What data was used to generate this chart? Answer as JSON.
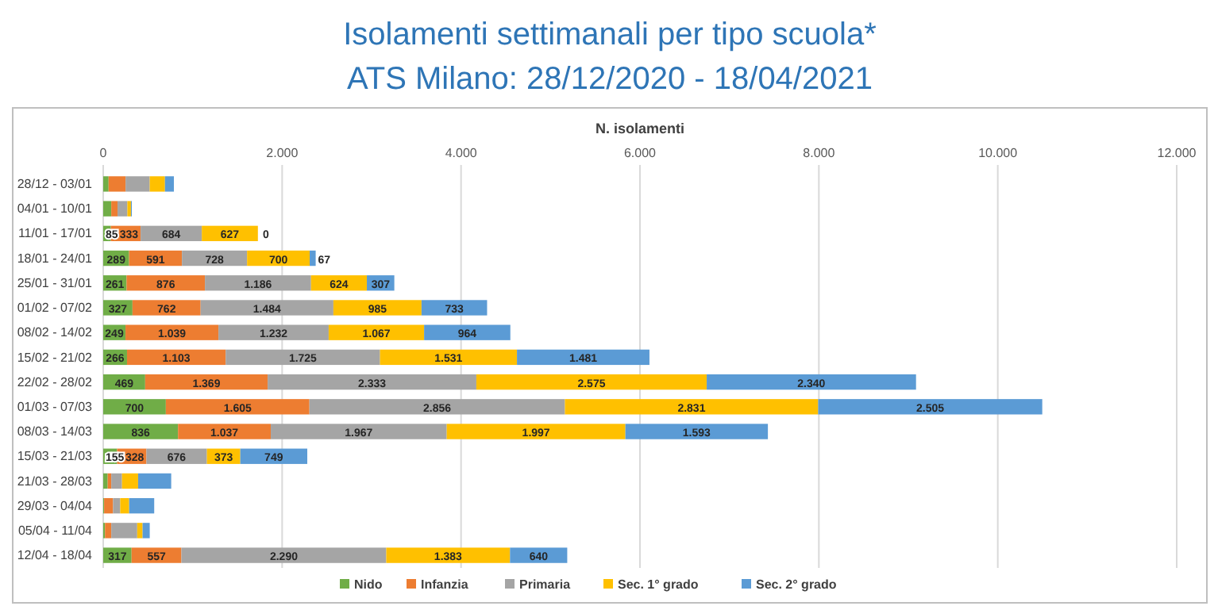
{
  "chart_data": {
    "type": "bar",
    "orientation": "horizontal",
    "stacked": true,
    "title": "Isolamenti settimanali per tipo scuola*",
    "subtitle": "ATS Milano: 28/12/2020 - 18/04/2021",
    "xlabel": "N. isolamenti",
    "categories": [
      "28/12 - 03/01",
      "04/01 - 10/01",
      "11/01 - 17/01",
      "18/01 - 24/01",
      "25/01 - 31/01",
      "01/02 - 07/02",
      "08/02 - 14/02",
      "15/02 - 21/02",
      "22/02 - 28/02",
      "01/03 - 07/03",
      "08/03 - 14/03",
      "15/03 - 21/03",
      "21/03 - 28/03",
      "29/03 - 04/04",
      "05/04 - 11/04",
      "12/04 - 18/04"
    ],
    "series": [
      {
        "name": "Nido",
        "color": "#70ad47",
        "values": [
          60,
          90,
          85,
          289,
          261,
          327,
          249,
          266,
          469,
          700,
          836,
          155,
          50,
          10,
          20,
          317
        ],
        "value_labels": [
          null,
          null,
          "85",
          "289",
          "261",
          "327",
          "249",
          "266",
          "469",
          "700",
          "836",
          "155",
          null,
          null,
          null,
          "317"
        ]
      },
      {
        "name": "Infanzia",
        "color": "#ed7d31",
        "values": [
          190,
          70,
          333,
          591,
          876,
          762,
          1039,
          1103,
          1369,
          1605,
          1037,
          328,
          40,
          100,
          70,
          557
        ],
        "value_labels": [
          null,
          null,
          "333",
          "591",
          "876",
          "762",
          "1.039",
          "1.103",
          "1.369",
          "1.605",
          "1.037",
          "328",
          null,
          null,
          null,
          "557"
        ]
      },
      {
        "name": "Primaria",
        "color": "#a5a5a5",
        "values": [
          270,
          110,
          684,
          728,
          1186,
          1484,
          1232,
          1725,
          2333,
          2856,
          1967,
          676,
          120,
          80,
          290,
          2290
        ],
        "value_labels": [
          null,
          null,
          "684",
          "728",
          "1.186",
          "1.484",
          "1.232",
          "1.725",
          "2.333",
          "2.856",
          "1.967",
          "676",
          null,
          null,
          null,
          "2.290"
        ]
      },
      {
        "name": "Sec. 1° grado",
        "color": "#ffc000",
        "values": [
          170,
          40,
          627,
          700,
          624,
          985,
          1067,
          1531,
          2575,
          2831,
          1997,
          373,
          180,
          100,
          60,
          1383
        ],
        "value_labels": [
          null,
          null,
          "627",
          "700",
          "624",
          "985",
          "1.067",
          "1.531",
          "2.575",
          "2.831",
          "1.997",
          "373",
          null,
          null,
          null,
          "1.383"
        ]
      },
      {
        "name": "Sec. 2° grado",
        "color": "#5b9bd5",
        "values": [
          100,
          10,
          0,
          67,
          307,
          733,
          964,
          1481,
          2340,
          2505,
          1593,
          749,
          370,
          280,
          80,
          640
        ],
        "value_labels": [
          null,
          null,
          "0",
          "67",
          "307",
          "733",
          "964",
          "1.481",
          "2.340",
          "2.505",
          "1.593",
          "749",
          null,
          null,
          null,
          "640"
        ]
      }
    ],
    "xlim": [
      0,
      12000
    ],
    "xticks": [
      0,
      {
        "value": 2000,
        "label": "2.000"
      },
      {
        "value": 4000,
        "label": "4.000"
      },
      {
        "value": 6000,
        "label": "6.000"
      },
      {
        "value": 8000,
        "label": "8.000"
      },
      {
        "value": 10000,
        "label": "10.000"
      },
      {
        "value": 12000,
        "label": "12.000"
      }
    ],
    "grid": "x",
    "legend": "bottom"
  }
}
